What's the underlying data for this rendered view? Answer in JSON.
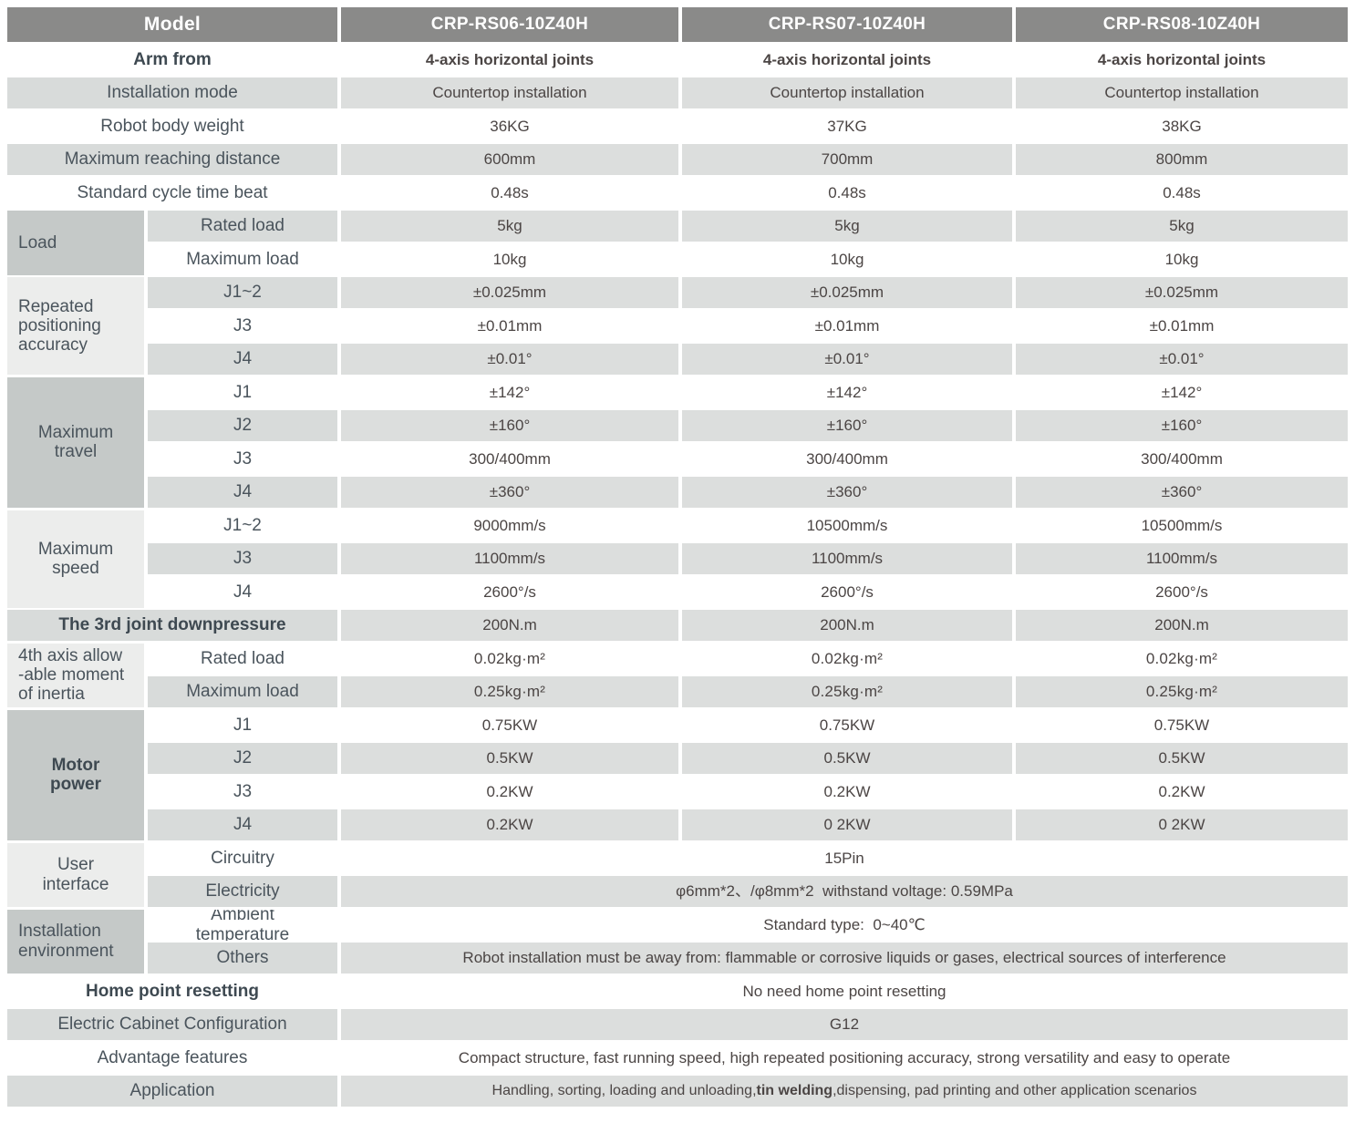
{
  "colors": {
    "header_bg": "#8a8a89",
    "header_text": "#ffffff",
    "row_gray": "#dcdedd",
    "label_gray": "#d8dbda",
    "group_dark": "#c5c9c8",
    "group_light": "#ecedec",
    "label_text": "#4a545c",
    "value_text": "#4b4544"
  },
  "header": {
    "model_label": "Model",
    "models": [
      "CRP-RS06-10Z40H",
      "CRP-RS07-10Z40H",
      "CRP-RS08-10Z40H"
    ]
  },
  "rows": {
    "arm_from": {
      "label": "Arm from",
      "values": [
        "4-axis horizontal joints",
        "4-axis horizontal joints",
        "4-axis horizontal joints"
      ]
    },
    "installation_mode": {
      "label": "Installation mode",
      "values": [
        "Countertop installation",
        "Countertop installation",
        "Countertop installation"
      ]
    },
    "robot_body_weight": {
      "label": "Robot body weight",
      "values": [
        "36KG",
        "37KG",
        "38KG"
      ]
    },
    "max_reaching_distance": {
      "label": "Maximum reaching distance",
      "values": [
        "600mm",
        "700mm",
        "800mm"
      ]
    },
    "cycle_time": {
      "label": "Standard cycle time beat",
      "values": [
        "0.48s",
        "0.48s",
        "0.48s"
      ]
    },
    "load": {
      "group_label": "Load",
      "rated": {
        "label": "Rated load",
        "values": [
          "5kg",
          "5kg",
          "5kg"
        ]
      },
      "maximum": {
        "label": "Maximum load",
        "values": [
          "10kg",
          "10kg",
          "10kg"
        ]
      }
    },
    "accuracy": {
      "group_label": "Repeated positioning accuracy",
      "j12": {
        "label": "J1~2",
        "values": [
          "±0.025mm",
          "±0.025mm",
          "±0.025mm"
        ]
      },
      "j3": {
        "label": "J3",
        "values": [
          "±0.01mm",
          "±0.01mm",
          "±0.01mm"
        ]
      },
      "j4": {
        "label": "J4",
        "values": [
          "±0.01°",
          "±0.01°",
          "±0.01°"
        ]
      }
    },
    "travel": {
      "group_label": "Maximum\ntravel",
      "j1": {
        "label": "J1",
        "values": [
          "±142°",
          "±142°",
          "±142°"
        ]
      },
      "j2": {
        "label": "J2",
        "values": [
          "±160°",
          "±160°",
          "±160°"
        ]
      },
      "j3": {
        "label": "J3",
        "values": [
          "300/400mm",
          "300/400mm",
          "300/400mm"
        ]
      },
      "j4": {
        "label": "J4",
        "values": [
          "±360°",
          "±360°",
          "±360°"
        ]
      }
    },
    "speed": {
      "group_label": "Maximum\nspeed",
      "j12": {
        "label": "J1~2",
        "values": [
          "9000mm/s",
          "10500mm/s",
          "10500mm/s"
        ]
      },
      "j3": {
        "label": "J3",
        "values": [
          "1100mm/s",
          "1100mm/s",
          "1100mm/s"
        ]
      },
      "j4": {
        "label": "J4",
        "values": [
          "2600°/s",
          "2600°/s",
          "2600°/s"
        ]
      }
    },
    "downpressure": {
      "label": "The 3rd joint downpressure",
      "values": [
        "200N.m",
        "200N.m",
        "200N.m"
      ]
    },
    "inertia": {
      "group_label": "4th axis allow\n-able moment\nof inertia",
      "rated": {
        "label": "Rated load",
        "values": [
          "0.02kg·m²",
          "0.02kg·m²",
          "0.02kg·m²"
        ]
      },
      "maximum": {
        "label": "Maximum load",
        "values": [
          "0.25kg·m²",
          "0.25kg·m²",
          "0.25kg·m²"
        ]
      }
    },
    "motor_power": {
      "group_label": "Motor\npower",
      "j1": {
        "label": "J1",
        "values": [
          "0.75KW",
          "0.75KW",
          "0.75KW"
        ]
      },
      "j2": {
        "label": "J2",
        "values": [
          "0.5KW",
          "0.5KW",
          "0.5KW"
        ]
      },
      "j3": {
        "label": "J3",
        "values": [
          "0.2KW",
          "0.2KW",
          "0.2KW"
        ]
      },
      "j4": {
        "label": "J4",
        "values": [
          "0.2KW",
          "0 2KW",
          "0 2KW"
        ]
      }
    },
    "user_interface": {
      "group_label": "User\ninterface",
      "circuitry": {
        "label": "Circuitry",
        "value": "15Pin"
      },
      "electricity": {
        "label": "Electricity",
        "value": "φ6mm*2、/φ8mm*2  withstand voltage: 0.59MPa"
      }
    },
    "environment": {
      "group_label": "Installation\nenvironment",
      "ambient": {
        "label": "Ambient\ntemperature",
        "value": "Standard type:  0~40℃"
      },
      "others": {
        "label": "Others",
        "value": "Robot installation must be away from: flammable or corrosive liquids or gases, electrical sources of interference"
      }
    },
    "home_point": {
      "label": "Home point resetting",
      "value": "No need home point resetting"
    },
    "cabinet": {
      "label": "Electric Cabinet Configuration",
      "value": "G12"
    },
    "advantage": {
      "label": "Advantage features",
      "value": "Compact structure, fast running speed, high repeated positioning accuracy, strong versatility and easy to operate"
    },
    "application": {
      "label": "Application",
      "value_pre": "Handling, sorting, loading and unloading,",
      "value_bold": "tin welding",
      "value_post": ",dispensing, pad printing and other application scenarios"
    }
  }
}
